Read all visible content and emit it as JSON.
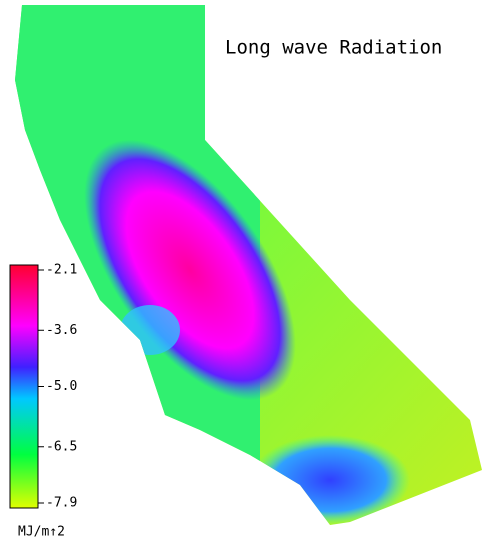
{
  "title": "Long wave Radiation",
  "colorbar": {
    "lim": [
      -7.9,
      -2.1
    ],
    "ticks": [
      -2.1,
      -3.6,
      {
        "value": -5,
        "label": "-5.0"
      },
      -6.5,
      -7.9
    ],
    "unit": "MJ/m↑2"
  }
}
